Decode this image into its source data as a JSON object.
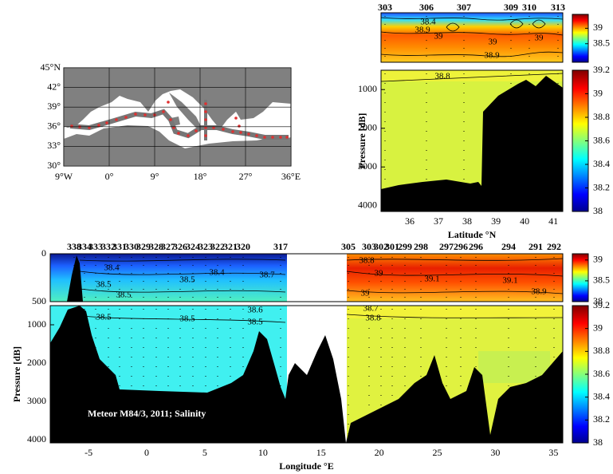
{
  "chart_data": [
    {
      "type": "map",
      "xlim": [
        -9,
        36
      ],
      "xticks": [
        {
          "value": -9,
          "label": "9°W"
        },
        {
          "value": 0,
          "label": "0°"
        },
        {
          "value": 9,
          "label": "9°"
        },
        {
          "value": 18,
          "label": "18°"
        },
        {
          "value": 27,
          "label": "27°"
        },
        {
          "value": 36,
          "label": "36°E"
        }
      ],
      "ylim": [
        30,
        45
      ],
      "yticks": [
        {
          "value": 30,
          "label": "30°"
        },
        {
          "value": 33,
          "label": "33°"
        },
        {
          "value": 36,
          "label": "36°"
        },
        {
          "value": 39,
          "label": "39°"
        },
        {
          "value": 42,
          "label": "42°"
        },
        {
          "value": 45,
          "label": "45°N"
        }
      ],
      "grid": true,
      "land_color": "#808080",
      "track_color": "#e03030"
    },
    {
      "type": "section",
      "xlabel": "Latitude °N",
      "ylabel": "Pressure [dB]",
      "xlim": [
        35,
        41.33
      ],
      "xticks": [
        36,
        37,
        38,
        39,
        40,
        41
      ],
      "ylim": [
        500,
        4150
      ],
      "yticks": [
        1000,
        2000,
        3000,
        4000
      ],
      "stations": [
        "303",
        "306",
        "307",
        "309",
        "310",
        "313"
      ],
      "annotations": [
        "38.4",
        "38.9",
        "39",
        "39",
        "39",
        "38.9",
        "38.8"
      ],
      "colorbars": [
        {
          "clim": [
            37.9,
            39.45
          ],
          "ticks": [
            38.5,
            39
          ]
        },
        {
          "clim": [
            38,
            39.2
          ],
          "ticks": [
            38,
            38.2,
            38.4,
            38.6,
            38.8,
            39,
            39.2
          ]
        }
      ]
    },
    {
      "type": "section",
      "xlabel": "Longitude °E",
      "ylabel": "Pressure [dB]",
      "xlim": [
        -8.3,
        35.8
      ],
      "xticks": [
        -5,
        0,
        5,
        10,
        15,
        20,
        25,
        30,
        35
      ],
      "ylim_top": [
        0,
        500
      ],
      "yticks_top": [
        0,
        500
      ],
      "ylim": [
        500,
        4083
      ],
      "yticks": [
        1000,
        2000,
        3000,
        4000
      ],
      "stations": [
        "338",
        "334",
        "333",
        "332",
        "331",
        "330",
        "329",
        "328",
        "327",
        "326",
        "324",
        "323",
        "322",
        "321",
        "320",
        "317",
        "305",
        "303",
        "302",
        "301",
        "299",
        "298",
        "297",
        "296",
        "296",
        "294",
        "291",
        "292"
      ],
      "annotations": [
        "38.4",
        "38.5",
        "38.5",
        "38.4",
        "38.5",
        "38.7",
        "38.8",
        "39",
        "39.1",
        "39.1",
        "38.9",
        "39",
        "38.5",
        "38.5",
        "38.5",
        "38.6",
        "38.7",
        "38.8"
      ],
      "caption": "Meteor M84/3, 2011; Salinity",
      "colorbars": [
        {
          "clim": [
            38,
            39.15
          ],
          "ticks": [
            38,
            38.5,
            39
          ]
        },
        {
          "clim": [
            38,
            39.2
          ],
          "ticks": [
            38,
            38.2,
            38.4,
            38.6,
            38.8,
            39,
            39.2
          ]
        }
      ]
    }
  ]
}
